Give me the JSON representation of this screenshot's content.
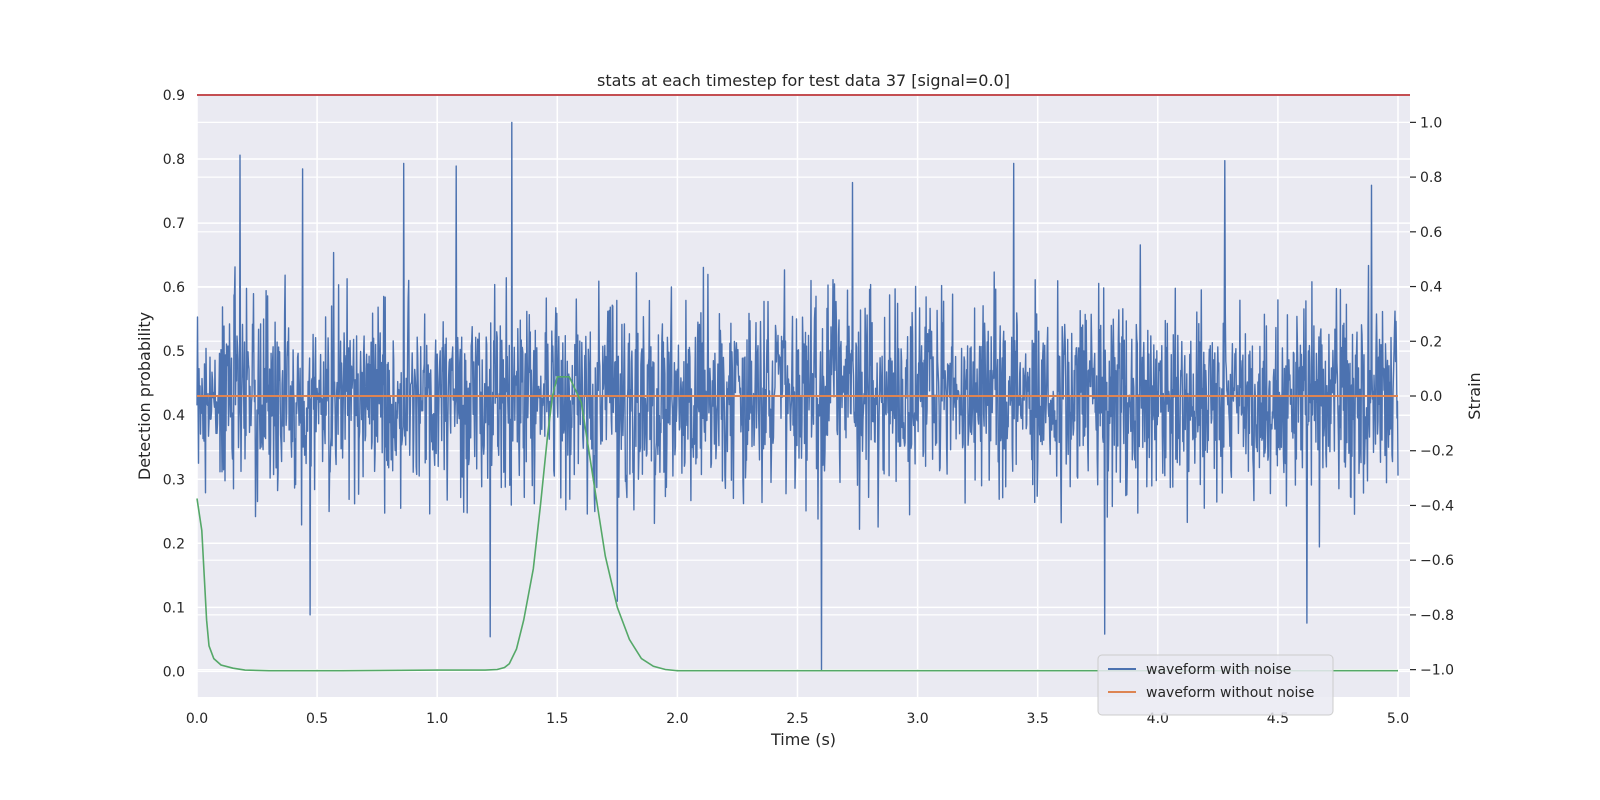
{
  "chart_data": {
    "type": "line",
    "title": "stats at each timestep for test data 37 [signal=0.0]",
    "xlabel": "Time (s)",
    "ylabel": "Detection probability",
    "ylabel_right": "Strain",
    "xlim": [
      0.0,
      5.05
    ],
    "ylim": [
      -0.04,
      0.9
    ],
    "ylim_right": [
      -1.1,
      1.1
    ],
    "x_ticks": [
      "0.0",
      "0.5",
      "1.0",
      "1.5",
      "2.0",
      "2.5",
      "3.0",
      "3.5",
      "4.0",
      "4.5",
      "5.0"
    ],
    "y_ticks": [
      "0.0",
      "0.1",
      "0.2",
      "0.3",
      "0.4",
      "0.5",
      "0.6",
      "0.7",
      "0.8",
      "0.9"
    ],
    "y_ticks_right": [
      "−1.0",
      "−0.8",
      "−0.6",
      "−0.4",
      "−0.2",
      "0.0",
      "0.2",
      "0.4",
      "0.6",
      "0.8",
      "1.0"
    ],
    "grid": true,
    "legend_position": "lower-right",
    "threshold": {
      "axis": "left",
      "value": 0.9,
      "color": "#c44e52"
    },
    "series": [
      {
        "name": "waveform with noise",
        "axis": "right",
        "color": "#4c72b0",
        "kind": "noise",
        "x_range": [
          0.0,
          5.0
        ],
        "center": 0.0,
        "envelope": [
          -1.0,
          1.0
        ],
        "peaks": [
          {
            "x": 0.18,
            "y": 0.88
          },
          {
            "x": 0.44,
            "y": 0.83
          },
          {
            "x": 0.86,
            "y": 0.85
          },
          {
            "x": 1.08,
            "y": 0.84
          },
          {
            "x": 1.31,
            "y": 1.0
          },
          {
            "x": 2.73,
            "y": 0.78
          },
          {
            "x": 3.4,
            "y": 0.85
          },
          {
            "x": 4.28,
            "y": 0.86
          },
          {
            "x": 4.89,
            "y": 0.77
          },
          {
            "x": 0.47,
            "y": -0.8
          },
          {
            "x": 1.22,
            "y": -0.88
          },
          {
            "x": 2.6,
            "y": -1.0
          },
          {
            "x": 3.78,
            "y": -0.87
          },
          {
            "x": 1.75,
            "y": -0.75
          },
          {
            "x": 4.62,
            "y": -0.83
          }
        ]
      },
      {
        "name": "waveform without noise",
        "axis": "right",
        "color": "#dd8452",
        "x": [
          0.0,
          5.0
        ],
        "y": [
          0.0,
          0.0
        ]
      },
      {
        "axis": "left",
        "color": "#55a868",
        "x": [
          0.0,
          0.02,
          0.03,
          0.04,
          0.05,
          0.07,
          0.1,
          0.15,
          0.2,
          0.3,
          0.6,
          1.0,
          1.1,
          1.2,
          1.25,
          1.28,
          1.3,
          1.33,
          1.36,
          1.4,
          1.43,
          1.46,
          1.48,
          1.5,
          1.55,
          1.6,
          1.65,
          1.7,
          1.75,
          1.8,
          1.85,
          1.9,
          1.95,
          2.0,
          2.2,
          3.0,
          4.0,
          5.0
        ],
        "y": [
          0.27,
          0.22,
          0.15,
          0.08,
          0.04,
          0.02,
          0.01,
          0.005,
          0.002,
          0.001,
          0.001,
          0.002,
          0.002,
          0.002,
          0.003,
          0.006,
          0.012,
          0.035,
          0.08,
          0.16,
          0.26,
          0.37,
          0.43,
          0.46,
          0.46,
          0.42,
          0.3,
          0.18,
          0.1,
          0.05,
          0.02,
          0.008,
          0.003,
          0.001,
          0.001,
          0.001,
          0.001,
          0.001
        ]
      }
    ]
  }
}
